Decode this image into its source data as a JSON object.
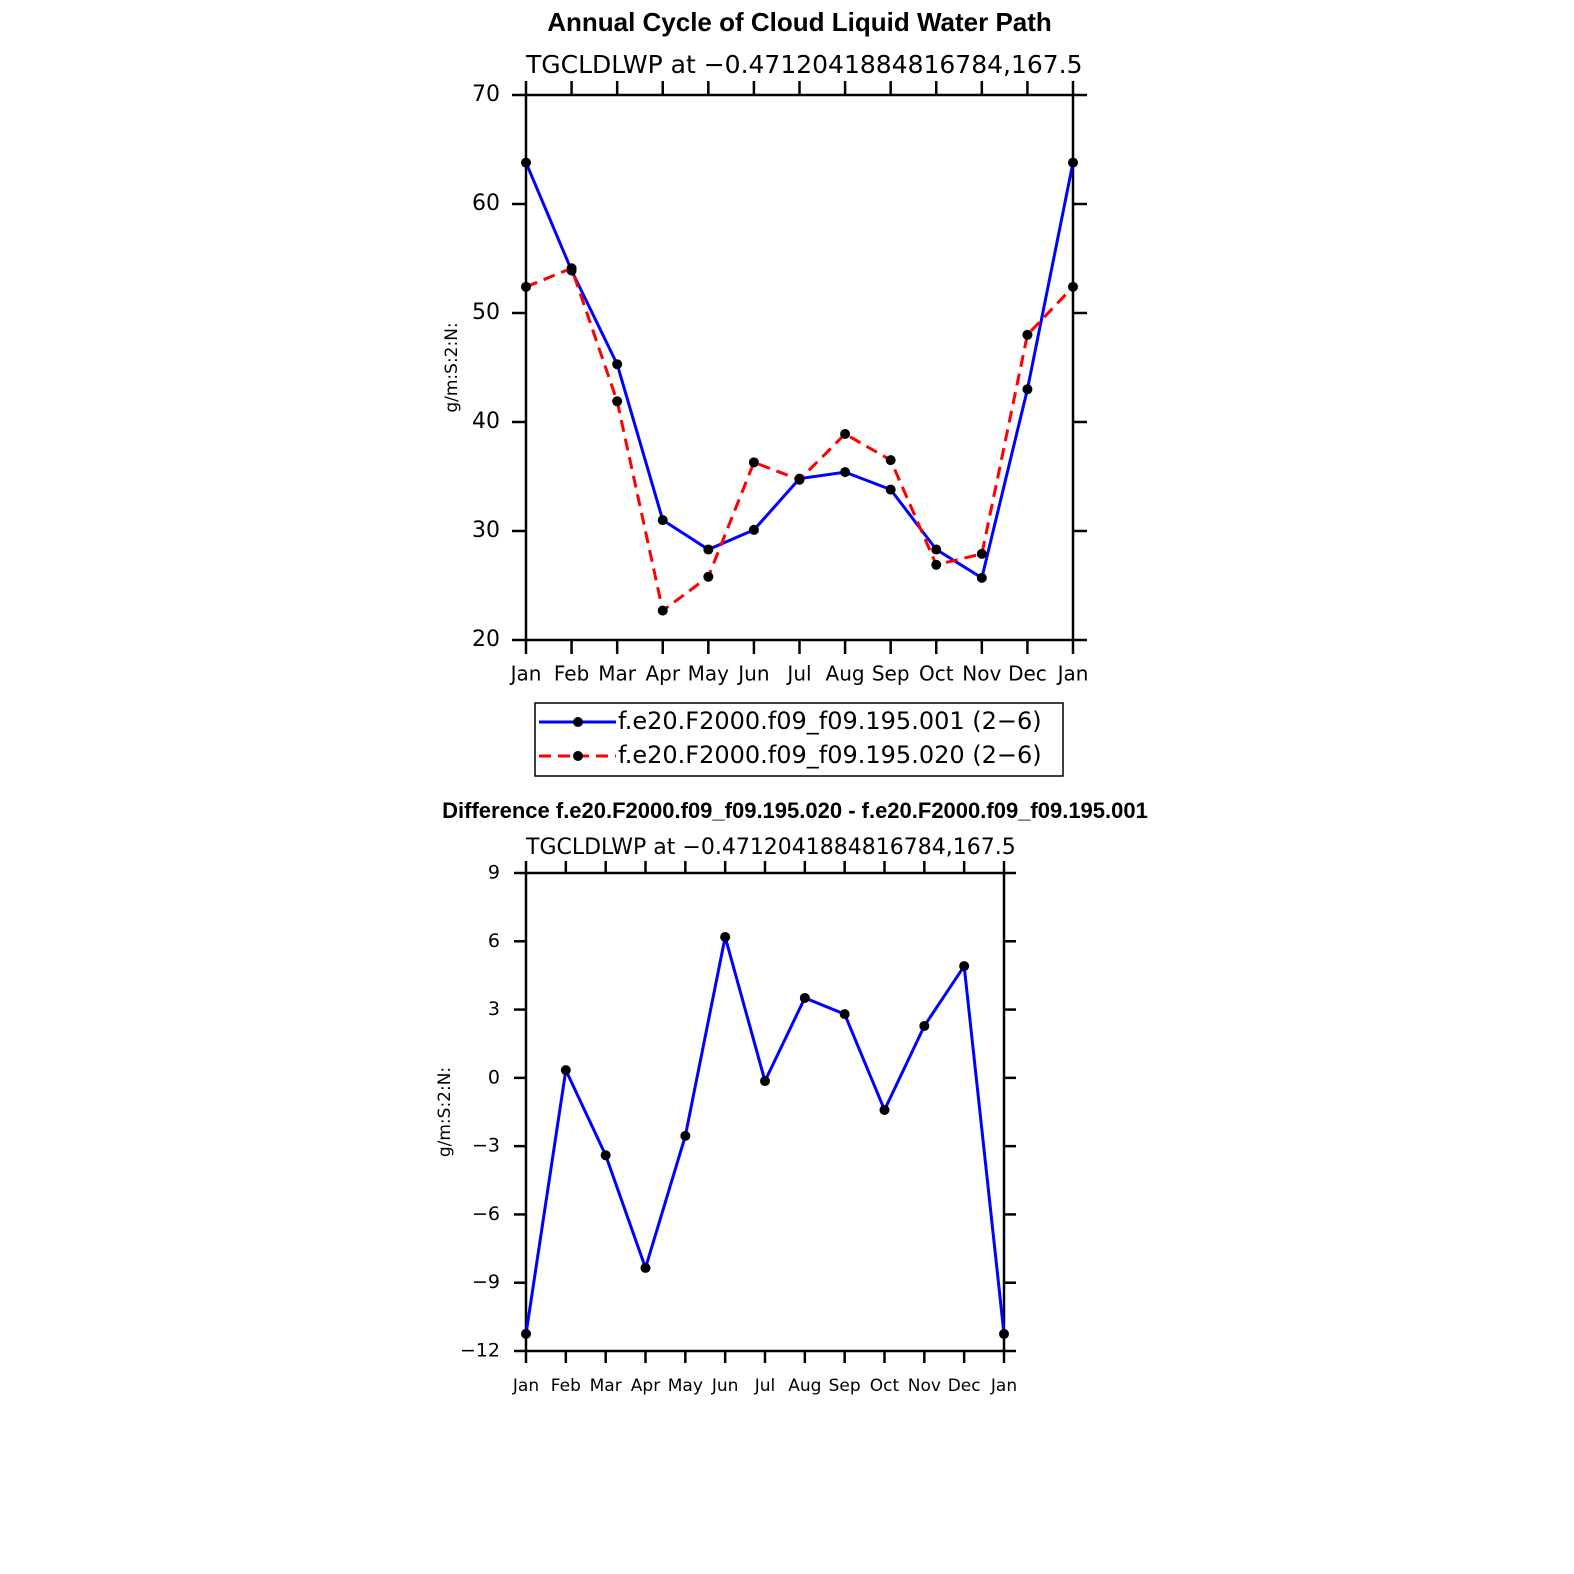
{
  "chart_data": [
    {
      "type": "line",
      "title": "Annual Cycle of Cloud Liquid Water Path",
      "subtitle": "TGCLDLWP at −0.4712041884816784,167.5",
      "ylabel": "g/m:S:2:N:",
      "categories": [
        "Jan",
        "Feb",
        "Mar",
        "Apr",
        "May",
        "Jun",
        "Jul",
        "Aug",
        "Sep",
        "Oct",
        "Nov",
        "Dec",
        "Jan"
      ],
      "series": [
        {
          "name": "f.e20.F2000.f09_f09.195.001 (2−6)",
          "color": "#0000ff",
          "dash": false,
          "values": [
            63.8,
            53.9,
            45.3,
            31.0,
            28.3,
            30.1,
            34.8,
            35.4,
            33.8,
            28.3,
            25.7,
            43.0,
            63.8
          ]
        },
        {
          "name": "f.e20.F2000.f09_f09.195.020 (2−6)",
          "color": "#ff0000",
          "dash": true,
          "values": [
            52.4,
            54.1,
            41.9,
            22.7,
            25.8,
            36.3,
            34.7,
            38.9,
            36.5,
            26.9,
            27.9,
            48.0,
            52.4
          ]
        }
      ],
      "ylim": [
        20,
        70
      ],
      "yticks": [
        20,
        30,
        40,
        50,
        60,
        70
      ],
      "legend": "bottom"
    },
    {
      "type": "line",
      "title": "Difference f.e20.F2000.f09_f09.195.020 - f.e20.F2000.f09_f09.195.001",
      "subtitle": "TGCLDLWP at −0.4712041884816784,167.5",
      "ylabel": "g/m:S:2:N:",
      "categories": [
        "Jan",
        "Feb",
        "Mar",
        "Apr",
        "May",
        "Jun",
        "Jul",
        "Aug",
        "Sep",
        "Oct",
        "Nov",
        "Dec",
        "Jan"
      ],
      "series": [
        {
          "color": "#0000ff",
          "dash": false,
          "values": [
            -11.25,
            0.34,
            -3.4,
            -8.35,
            -2.55,
            6.19,
            -0.14,
            3.51,
            2.8,
            -1.41,
            2.28,
            4.91,
            -11.25
          ]
        }
      ],
      "ylim": [
        -12,
        9
      ],
      "yticks": [
        {
          "value": -12,
          "label": "−12"
        },
        {
          "value": -9,
          "label": "−9"
        },
        {
          "value": -6,
          "label": "−6"
        },
        {
          "value": -3,
          "label": "−3"
        },
        0,
        3,
        6,
        9
      ]
    }
  ]
}
